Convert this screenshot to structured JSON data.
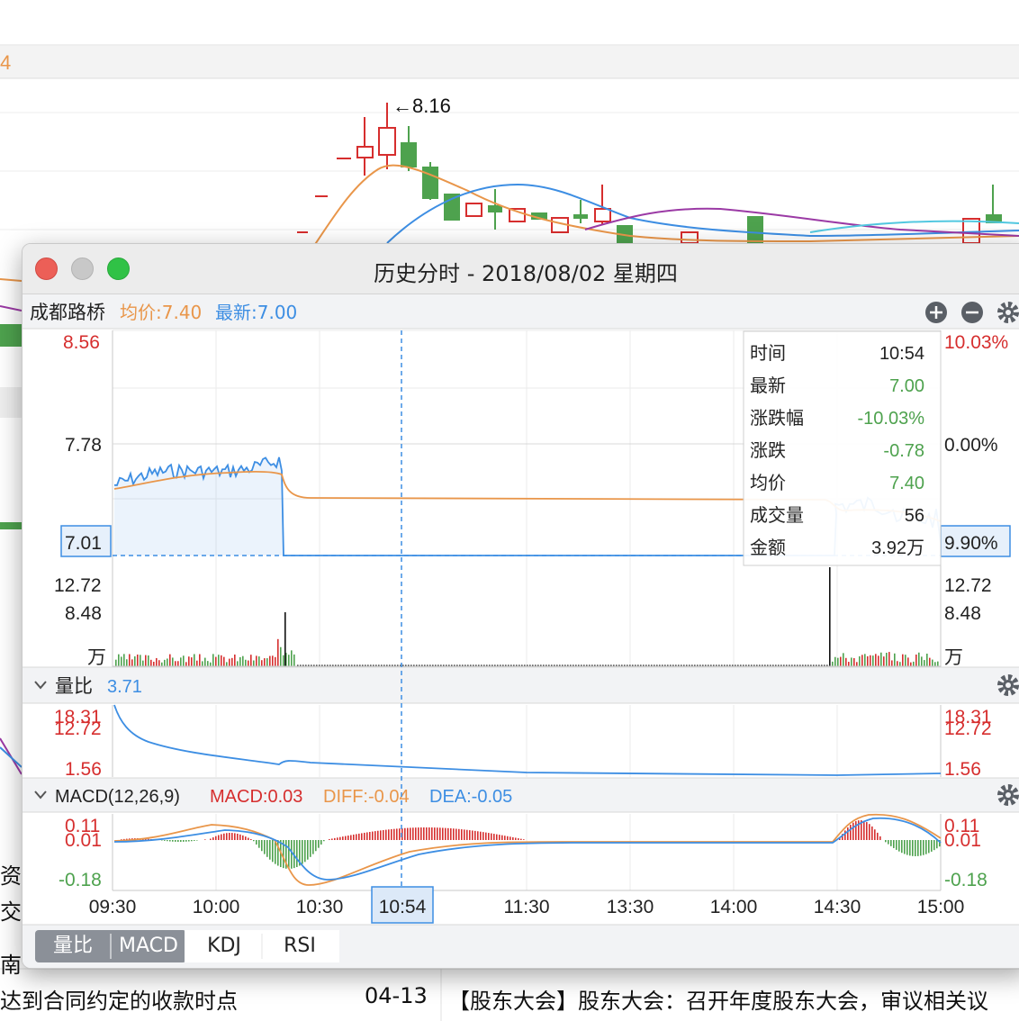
{
  "background": {
    "ma_value_fragment": "4",
    "high_marker": "←8.16",
    "left_cut_text_1": "资",
    "left_cut_text_2": "交易",
    "left_cut_text_3": "南",
    "news_row_text": "达到合同约定的收款时点",
    "news_row_date": "04-13",
    "news_row_right": "【股东大会】股东大会：召开年度股东大会，审议相关议"
  },
  "window": {
    "title": "历史分时 - 2018/08/02 星期四",
    "stock_name": "成都路桥",
    "avg_price_label": "均价:7.40",
    "latest_price_label": "最新:7.00"
  },
  "price_panel": {
    "left_axis": {
      "top": "8.56",
      "mid": "7.78",
      "bottom": "7.01"
    },
    "right_axis": {
      "top": "10.03%",
      "mid": "0.00%",
      "bottom": "9.90%"
    }
  },
  "volume_panel": {
    "left_axis": {
      "top": "12.72",
      "mid": "8.48",
      "unit": "万"
    },
    "right_axis": {
      "top": "12.72",
      "mid": "8.48",
      "unit": "万"
    }
  },
  "tooltip": [
    {
      "label": "时间",
      "value": "10:54"
    },
    {
      "label": "最新",
      "value": "7.00"
    },
    {
      "label": "涨跌幅",
      "value": "-10.03%"
    },
    {
      "label": "涨跌",
      "value": "-0.78"
    },
    {
      "label": "均价",
      "value": "7.40"
    },
    {
      "label": "成交量",
      "value": "56"
    },
    {
      "label": "金额",
      "value": "3.92万"
    }
  ],
  "ratio_panel": {
    "title": "量比",
    "value": "3.71",
    "left_axis": {
      "top": "18.31",
      "second": "12.72",
      "bottom": "1.56"
    },
    "right_axis": {
      "top": "18.31",
      "second": "12.72",
      "bottom": "1.56"
    }
  },
  "macd_panel": {
    "title": "MACD(12,26,9)",
    "macd_label": "MACD:0.03",
    "diff_label": "DIFF:-0.04",
    "dea_label": "DEA:-0.05",
    "left_axis": {
      "top": "0.11",
      "second": "0.01",
      "bottom": "-0.18"
    },
    "right_axis": {
      "top": "0.11",
      "second": "0.01",
      "bottom": "-0.18"
    }
  },
  "x_axis": [
    "09:30",
    "10:00",
    "10:30",
    "11:30",
    "13:30",
    "14:00",
    "14:30",
    "15:00"
  ],
  "cursor_time": "10:54",
  "bottom_tabs": [
    "量比",
    "MACD",
    "KDJ",
    "RSI"
  ],
  "colors": {
    "up": "#d62e2e",
    "down": "#4ea24e",
    "price_line": "#3d8ee3",
    "avg_line": "#e9964a",
    "dea_line": "#3d8ee3",
    "diff_line": "#e9964a"
  }
}
